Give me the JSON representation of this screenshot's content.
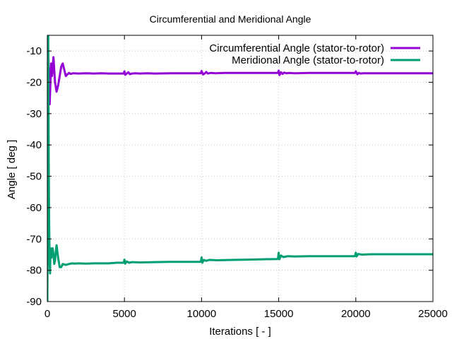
{
  "chart_data": {
    "type": "line",
    "title": "Circumferential and Meridional Angle",
    "xlabel": "Iterations [ - ]",
    "ylabel": "Angle [ deg ]",
    "xlim": [
      0,
      25000
    ],
    "ylim": [
      -90,
      -5
    ],
    "xticks": [
      0,
      5000,
      10000,
      15000,
      20000,
      25000
    ],
    "yticks": [
      -90,
      -80,
      -70,
      -60,
      -50,
      -40,
      -30,
      -20,
      -10
    ],
    "grid": true,
    "legend_position": "top-right",
    "series": [
      {
        "name": "Circumferential Angle (stator-to-rotor)",
        "color": "#9400d3",
        "x": [
          0,
          50,
          100,
          150,
          200,
          250,
          300,
          350,
          400,
          500,
          600,
          700,
          800,
          900,
          1000,
          1100,
          1200,
          1300,
          1400,
          1500,
          1700,
          2000,
          2500,
          3000,
          3500,
          4000,
          4500,
          4950,
          5000,
          5050,
          5150,
          5250,
          5350,
          5500,
          5700,
          6000,
          6500,
          7000,
          8000,
          9000,
          9950,
          10000,
          10100,
          10200,
          10300,
          10400,
          10600,
          10900,
          11500,
          12000,
          13000,
          14000,
          14950,
          15000,
          15050,
          15150,
          15250,
          15350,
          15500,
          15700,
          16000,
          17000,
          18000,
          19000,
          19950,
          20000,
          20100,
          20200,
          20300,
          20500,
          21000,
          22000,
          23000,
          24000,
          25000
        ],
        "y": [
          -5,
          -10,
          -16,
          -27,
          -20,
          -14,
          -18,
          -15,
          -12,
          -20,
          -23,
          -21,
          -18,
          -15,
          -14,
          -16,
          -18,
          -17.5,
          -17,
          -17.3,
          -17.1,
          -17.2,
          -17.1,
          -17.2,
          -17.1,
          -17.2,
          -17.2,
          -17.2,
          -16.5,
          -17.6,
          -17.2,
          -16.8,
          -17.4,
          -17.2,
          -17.1,
          -17.2,
          -17.1,
          -17.2,
          -17.1,
          -17.1,
          -17.1,
          -16.4,
          -17.5,
          -17.2,
          -16.7,
          -17.2,
          -17.0,
          -17.1,
          -17.0,
          -17.0,
          -17.0,
          -17.0,
          -17.0,
          -16.3,
          -17.7,
          -16.8,
          -17.3,
          -16.9,
          -17.1,
          -17.0,
          -17.1,
          -17.0,
          -17.0,
          -17.0,
          -17.0,
          -16.5,
          -17.4,
          -17.0,
          -17.2,
          -17.1,
          -17.1,
          -17.1,
          -17.1,
          -17.1,
          -17.1
        ]
      },
      {
        "name": "Meridional Angle (stator-to-rotor)",
        "color": "#009e73",
        "x": [
          0,
          30,
          60,
          90,
          120,
          150,
          180,
          200,
          230,
          260,
          300,
          350,
          400,
          450,
          500,
          550,
          600,
          700,
          800,
          900,
          1000,
          1200,
          1400,
          1600,
          1800,
          2000,
          2500,
          3000,
          3500,
          4000,
          4500,
          4950,
          5000,
          5050,
          5150,
          5300,
          5500,
          6000,
          7000,
          8000,
          9000,
          9950,
          10000,
          10050,
          10150,
          10300,
          10500,
          11000,
          12000,
          13000,
          14000,
          14950,
          15000,
          15050,
          15150,
          15300,
          15600,
          16000,
          17000,
          18000,
          19000,
          19950,
          20000,
          20050,
          20150,
          20400,
          21000,
          22000,
          23000,
          24000,
          25000
        ],
        "y": [
          -90,
          -60,
          -5,
          -45,
          -65,
          -78,
          -81,
          -73,
          -74,
          -76,
          -73,
          -73,
          -75,
          -78,
          -77,
          -74,
          -72,
          -76,
          -79,
          -79,
          -78,
          -78.3,
          -78,
          -77.8,
          -77.9,
          -77.8,
          -77.9,
          -77.8,
          -77.8,
          -77.8,
          -77.6,
          -77.6,
          -76.6,
          -77.9,
          -77.2,
          -77.6,
          -77.4,
          -77.5,
          -77.4,
          -77.3,
          -77.3,
          -77.3,
          -75.9,
          -77.6,
          -76.7,
          -77.0,
          -76.7,
          -76.8,
          -76.7,
          -76.6,
          -76.5,
          -76.4,
          -74.4,
          -76.5,
          -75.3,
          -75.8,
          -75.5,
          -75.6,
          -75.5,
          -75.5,
          -75.5,
          -75.5,
          -74.4,
          -75.6,
          -74.8,
          -75.0,
          -74.9,
          -74.9,
          -74.9,
          -74.9,
          -74.9
        ]
      }
    ]
  }
}
